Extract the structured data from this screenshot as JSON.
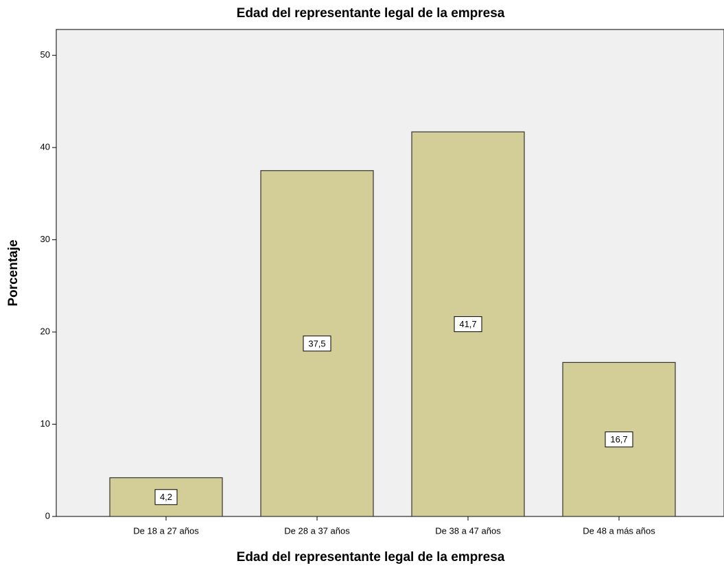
{
  "chart_data": {
    "type": "bar",
    "title": "Edad del representante legal de la empresa",
    "x_label": "Edad del representante legal de la empresa",
    "y_label": "Porcentaje",
    "categories": [
      "De 18 a 27 años",
      "De 28 a 37 años",
      "De 38 a 47 años",
      "De 48 a más años"
    ],
    "values": [
      4.2,
      37.5,
      41.7,
      16.7
    ],
    "value_labels": [
      "4,2",
      "37,5",
      "41,7",
      "16,7"
    ],
    "color": "#d3cd98",
    "ylim": [
      0,
      52.8
    ],
    "yticks": [
      0,
      10,
      20,
      30,
      40,
      50
    ]
  }
}
